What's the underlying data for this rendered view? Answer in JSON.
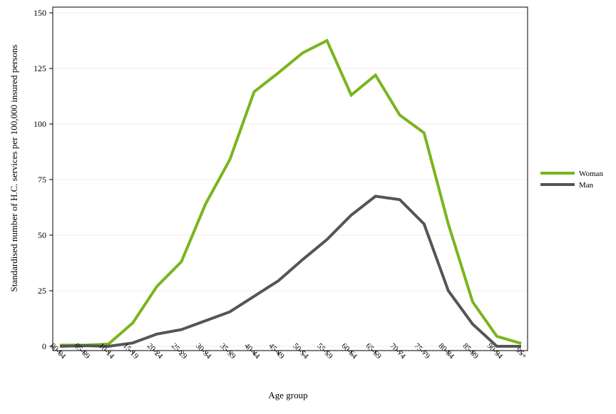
{
  "chart_data": {
    "type": "line",
    "title": "",
    "xlabel": "Age group",
    "ylabel": "Standardised number of H.C. services per 100,000 insured persons",
    "categories": [
      "00-04",
      "05-09",
      "10-14",
      "15-19",
      "20-24",
      "25-29",
      "30-34",
      "35-39",
      "40-44",
      "45-49",
      "50-54",
      "55-59",
      "60-64",
      "65-69",
      "70-74",
      "75-79",
      "80-84",
      "85-89",
      "90-94",
      "95+"
    ],
    "ylim": [
      0,
      150
    ],
    "yticks": [
      0,
      25,
      50,
      75,
      100,
      125,
      150
    ],
    "grid": "horizontal",
    "legend_position": "right",
    "series": [
      {
        "name": "Woman",
        "color": "#7ab51d",
        "values": [
          0.5,
          0.5,
          1.0,
          10.5,
          27,
          38,
          64,
          84,
          114.5,
          123,
          132,
          137.5,
          113,
          122,
          104,
          96,
          55,
          20,
          4.5,
          1.3
        ]
      },
      {
        "name": "Man",
        "color": "#555555",
        "values": [
          0,
          0.3,
          0,
          1.5,
          5.5,
          7.5,
          11.5,
          15.5,
          22.5,
          29.5,
          39,
          48,
          59,
          67.5,
          66,
          55,
          25,
          10,
          0,
          0
        ]
      }
    ]
  }
}
